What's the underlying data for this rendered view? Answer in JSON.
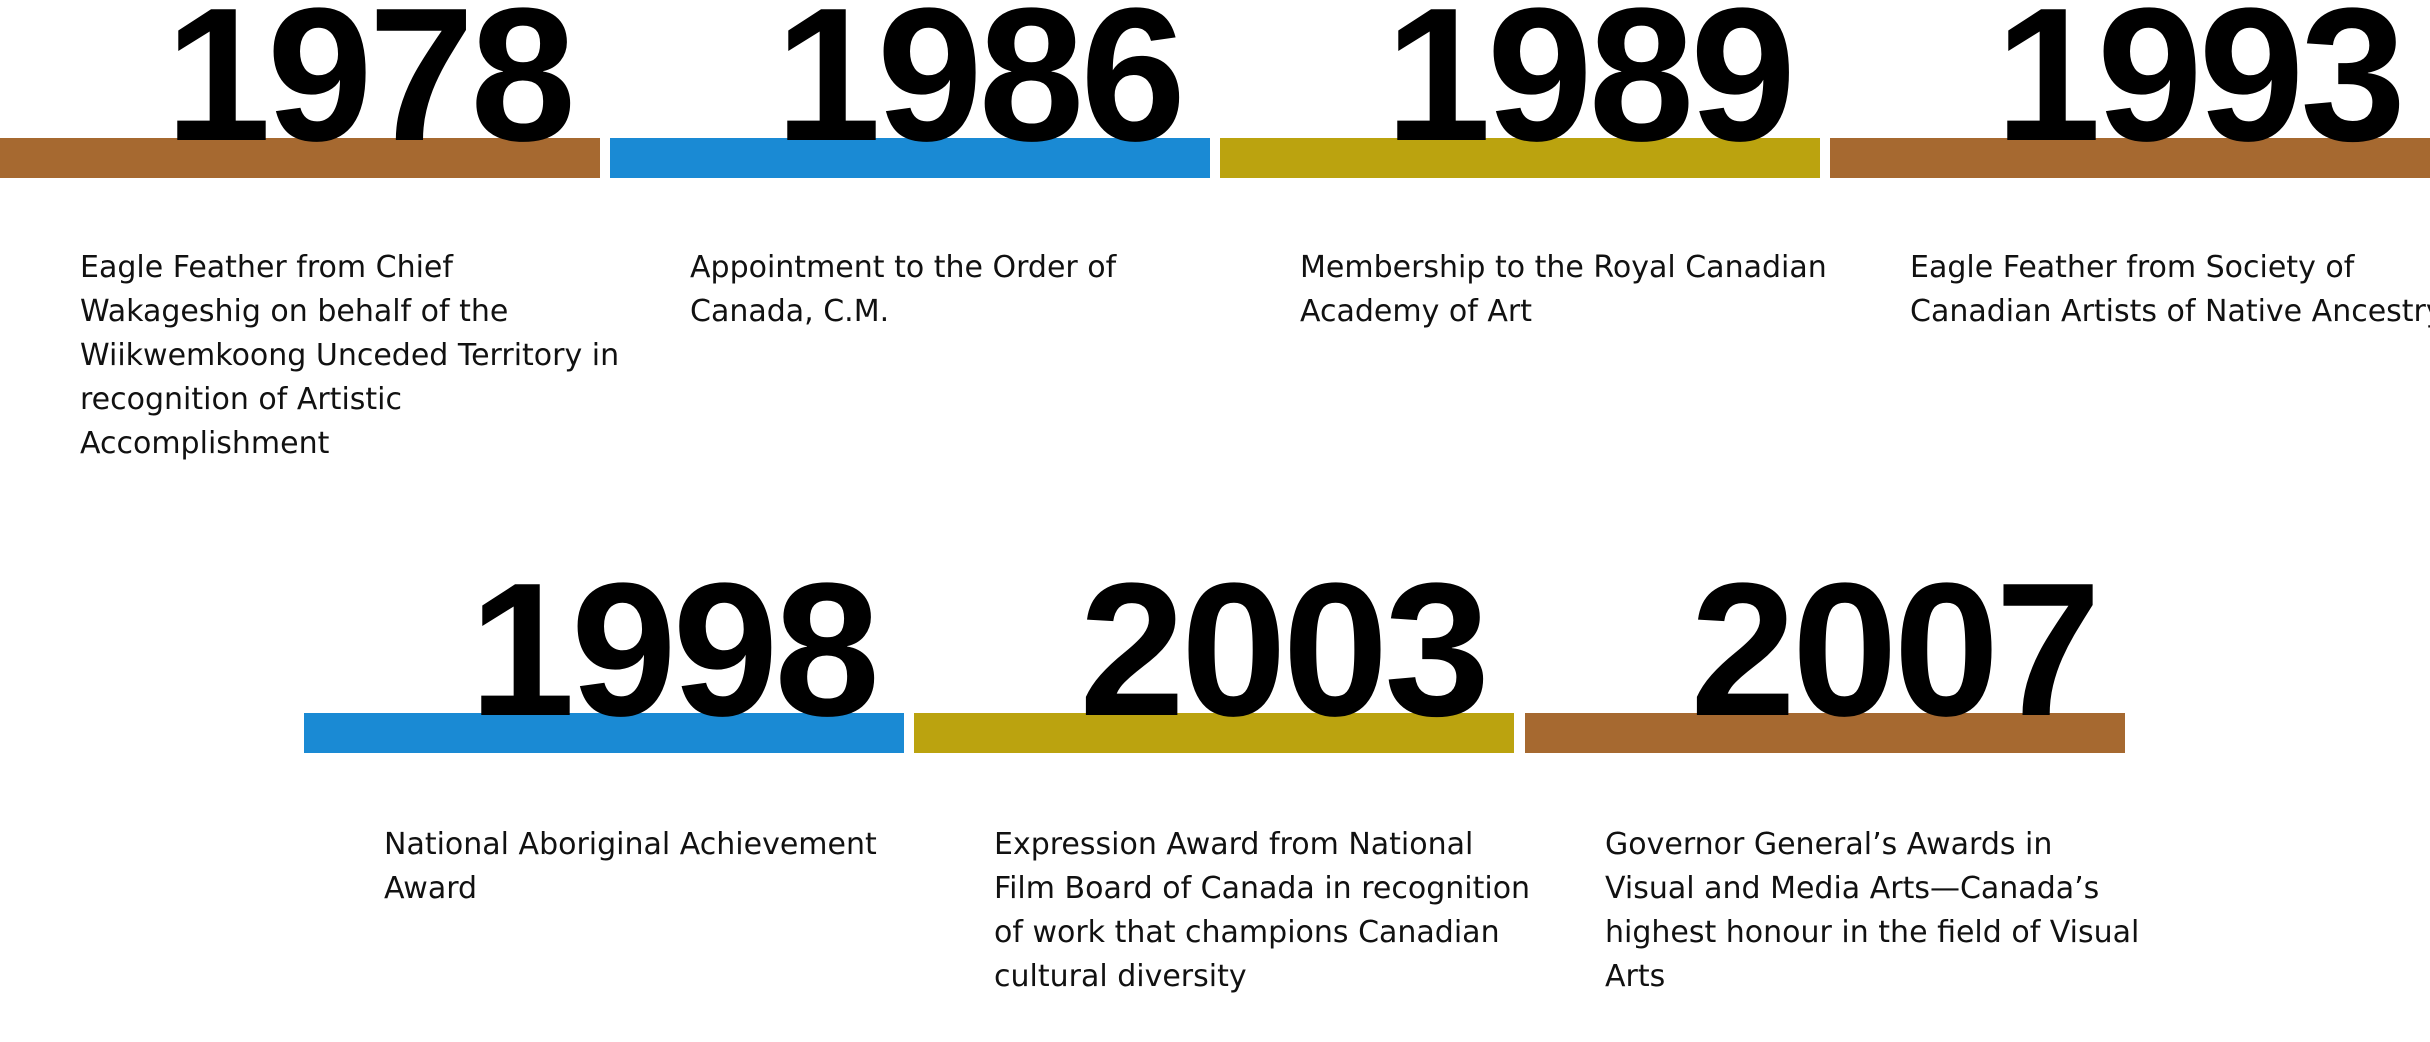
{
  "items": [
    {
      "year": "1978",
      "text": "Eagle Feather from Chief Wakageshig on behalf of the Wiikwemkoong Unceded  Territory in recognition of Artistic Accomplishment",
      "color": "#a66930"
    },
    {
      "year": "1986",
      "text": "Appointment to the Order of Canada, C.M.",
      "color": "#1a8ad4"
    },
    {
      "year": "1989",
      "text": "Membership to the Royal Canadian Academy of Art",
      "color": "#bba30f"
    },
    {
      "year": "1993",
      "text": "Eagle Feather from Society of Canadian Artists of Native Ancestry",
      "color": "#a66930"
    },
    {
      "year": "1998",
      "text": "National Aboriginal Achievement Award",
      "color": "#1a8ad4"
    },
    {
      "year": "2003",
      "text": "Expression Award from National Film Board of Canada in recognition of work that champions Canadian cultural diversity",
      "color": "#bba30f"
    },
    {
      "year": "2007",
      "text": "Governor General’s Awards in Visual and Media Arts—Canada’s highest honour in the field of Visual Arts",
      "color": "#a66930"
    }
  ]
}
